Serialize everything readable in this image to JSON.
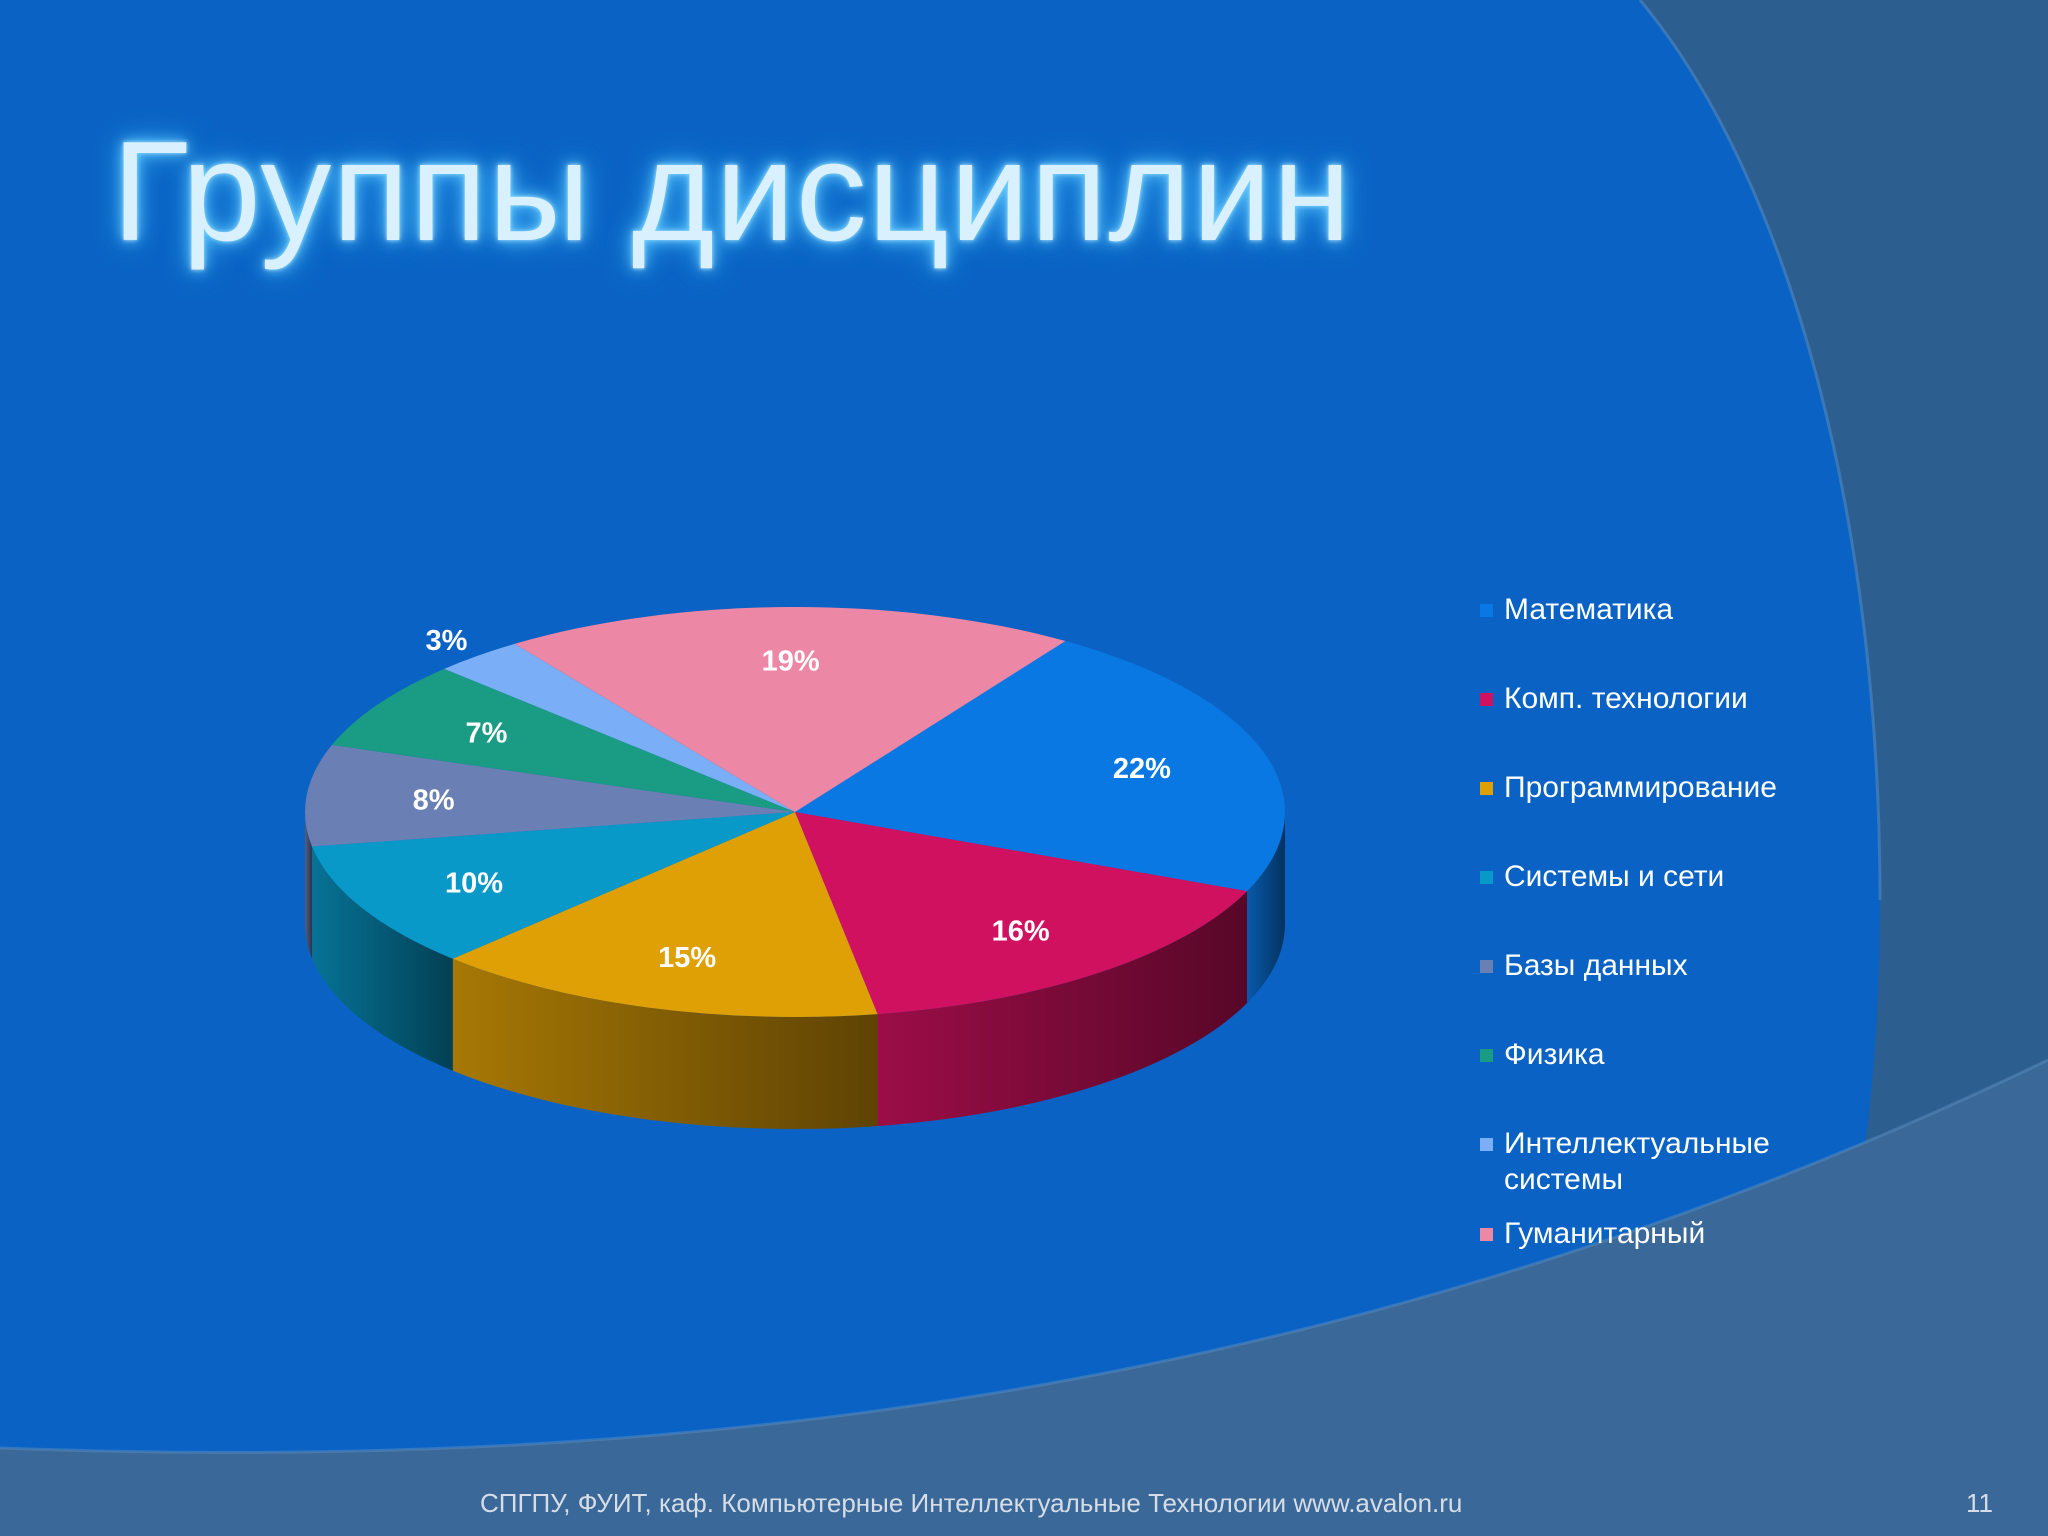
{
  "slide": {
    "title": "Группы дисциплин",
    "footer": "СПГПУ, ФУИТ, каф. Компьютерные Интеллектуальные Технологии www.avalon.ru",
    "page_number": "11"
  },
  "colors": {
    "background": "#0a63c4",
    "title_glow": "#6fd3ff"
  },
  "chart_data": {
    "type": "pie",
    "style": "3d",
    "legend_position": "right",
    "data_labels": "percent",
    "slices": [
      {
        "label": "Математика",
        "value": 22,
        "color": "#0a78e2",
        "value_label": "22%"
      },
      {
        "label": "Комп. технологии",
        "value": 16,
        "color": "#d0115f",
        "value_label": "16%"
      },
      {
        "label": "Программирование",
        "value": 15,
        "color": "#dfa006",
        "value_label": "15%"
      },
      {
        "label": "Системы и сети",
        "value": 10,
        "color": "#0899c9",
        "value_label": "10%"
      },
      {
        "label": "Базы данных",
        "value": 8,
        "color": "#6a7fb3",
        "value_label": "8%"
      },
      {
        "label": "Физика",
        "value": 7,
        "color": "#1a9b84",
        "value_label": "7%"
      },
      {
        "label": "Интеллектуальные системы",
        "value": 3,
        "color": "#7aaef7",
        "value_label": "3%"
      },
      {
        "label": "Гуманитарный",
        "value": 19,
        "color": "#ec87a6",
        "value_label": "19%"
      }
    ]
  }
}
